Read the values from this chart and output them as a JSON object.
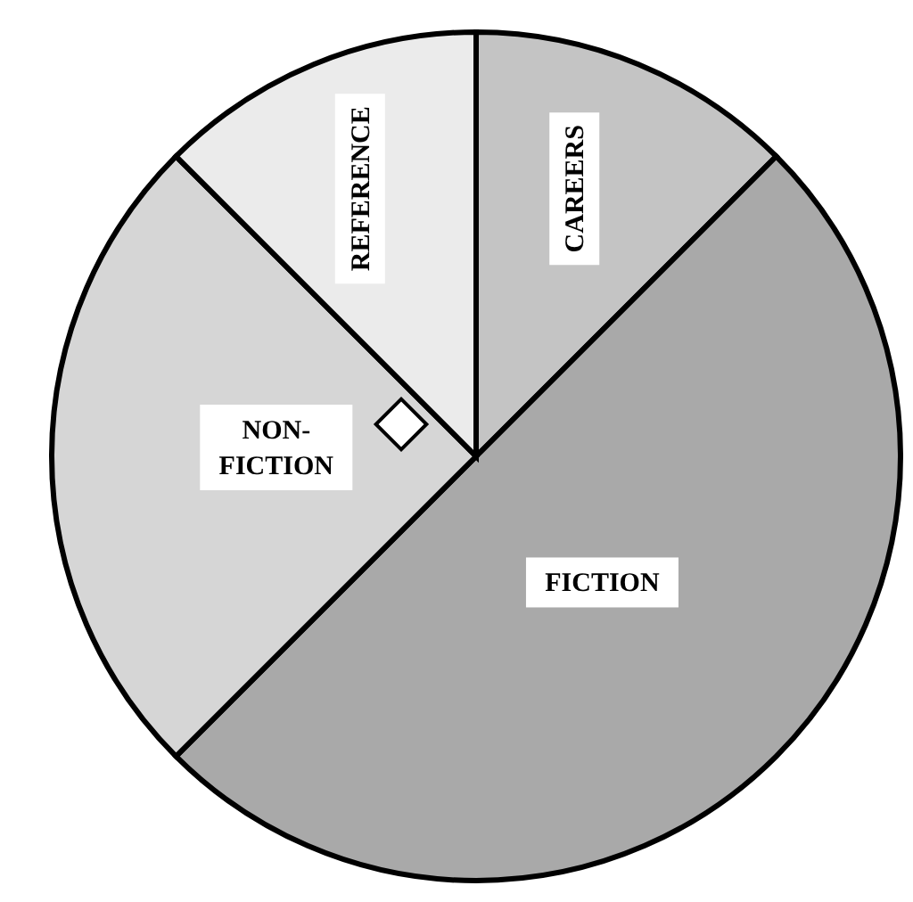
{
  "chart_data": {
    "type": "pie",
    "categories": [
      "CAREERS",
      "FICTION",
      "NON-FICTION",
      "REFERENCE"
    ],
    "values": [
      12.5,
      50,
      25,
      12.5
    ],
    "colors": [
      "#c4c4c4",
      "#a9a9a9",
      "#d6d6d6",
      "#ebebeb"
    ]
  }
}
